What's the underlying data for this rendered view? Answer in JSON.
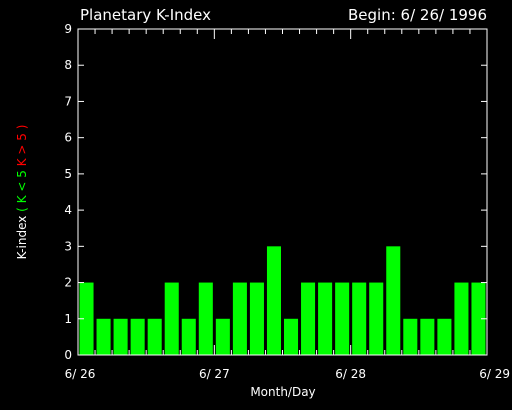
{
  "chart_data": {
    "type": "bar",
    "title": "Planetary K-Index",
    "begin_label": "Begin: 6/ 26/ 1996",
    "xlabel": "Month/Day",
    "ylabel": {
      "prefix": "K-index",
      "open": "(",
      "green": "K < 5",
      "red": "K > 5",
      "close": ")"
    },
    "ylim": [
      0,
      9
    ],
    "yticks": [
      "0",
      "1",
      "2",
      "3",
      "4",
      "5",
      "6",
      "7",
      "8",
      "9"
    ],
    "xticks": [
      "6/ 26",
      "6/ 27",
      "6/ 28",
      "6/ 29"
    ],
    "bars_per_day": 8,
    "days": 3,
    "values": [
      2,
      1,
      1,
      1,
      1,
      2,
      1,
      2,
      1,
      2,
      2,
      3,
      1,
      2,
      2,
      2,
      2,
      2,
      3,
      1,
      1,
      1,
      2,
      2
    ],
    "colors": {
      "background": "#000000",
      "axes": "#ffffff",
      "low_bar": "#00ff00",
      "high_bar": "#ff0000",
      "ylabel_green": "#00ff00",
      "ylabel_red": "#ff0000"
    }
  }
}
